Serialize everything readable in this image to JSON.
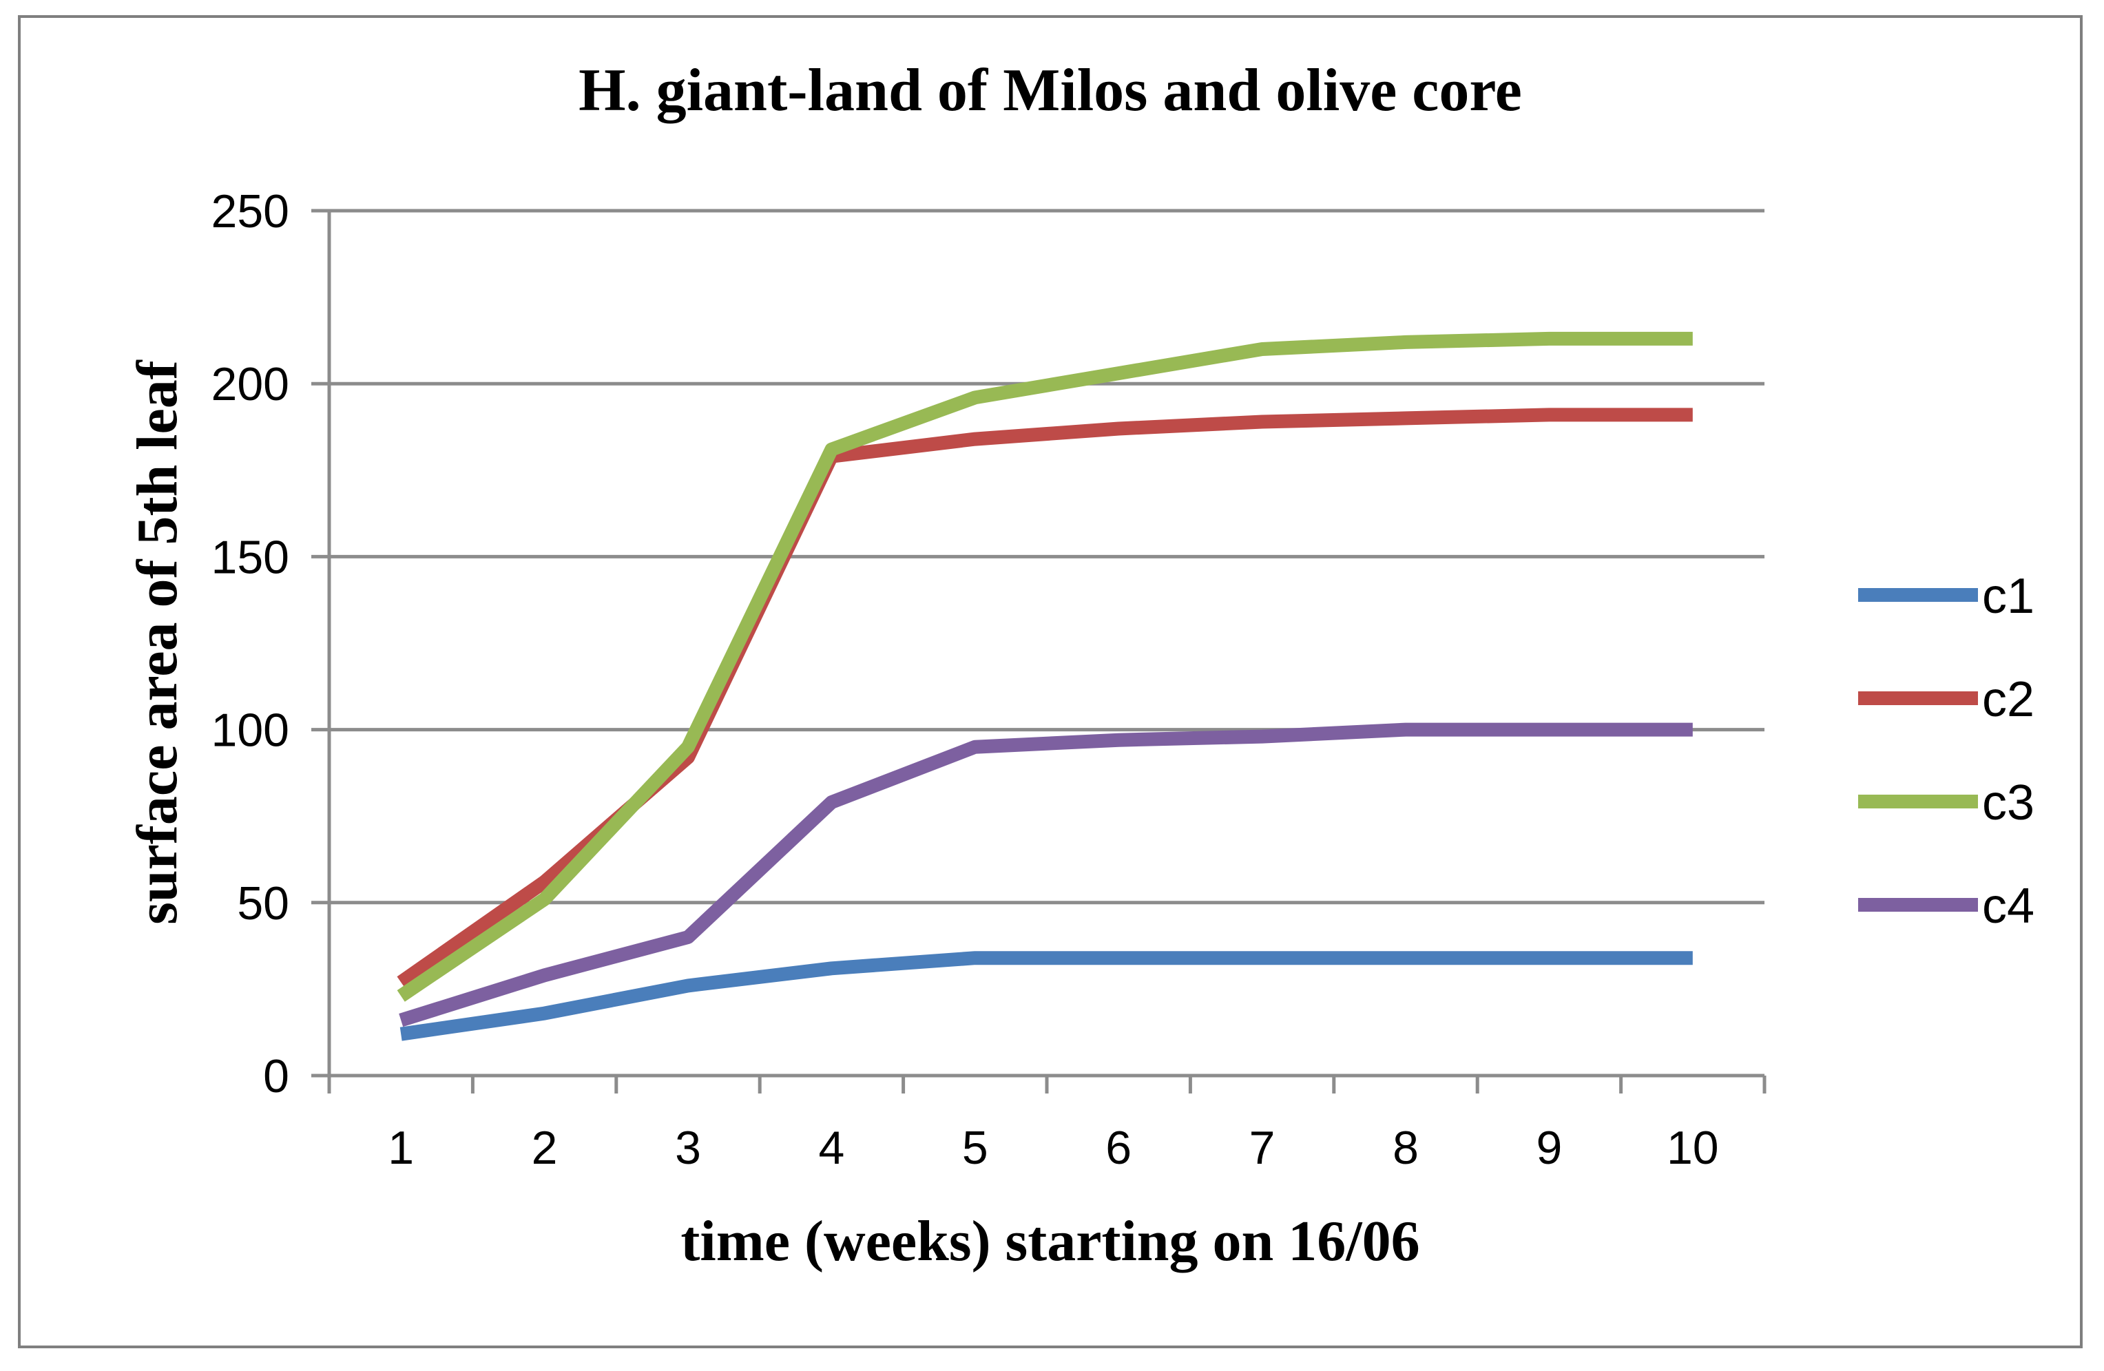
{
  "chart_data": {
    "type": "line",
    "title": "H. giant-land of Milos and olive core",
    "xlabel": "time (weeks) starting on 16/06",
    "ylabel": "surface area of 5th leaf",
    "categories": [
      "1",
      "2",
      "3",
      "4",
      "5",
      "6",
      "7",
      "8",
      "9",
      "10"
    ],
    "ylim": [
      0,
      250
    ],
    "yticks": [
      "0",
      "50",
      "100",
      "150",
      "200",
      "250"
    ],
    "grid": true,
    "legend_position": "right",
    "series": [
      {
        "name": "c1",
        "color": "#4a7ebb",
        "values": [
          12,
          18,
          26,
          31,
          34,
          34,
          34,
          34,
          34,
          34
        ]
      },
      {
        "name": "c2",
        "color": "#be4b48",
        "values": [
          27,
          56,
          92,
          179,
          184,
          187,
          189,
          190,
          191,
          191
        ]
      },
      {
        "name": "c3",
        "color": "#98b954",
        "values": [
          23,
          51,
          95,
          181,
          196,
          203,
          210,
          212,
          213,
          213
        ]
      },
      {
        "name": "c4",
        "color": "#7d60a0",
        "values": [
          16,
          29,
          40,
          79,
          95,
          97,
          98,
          100,
          100,
          100
        ]
      }
    ]
  }
}
